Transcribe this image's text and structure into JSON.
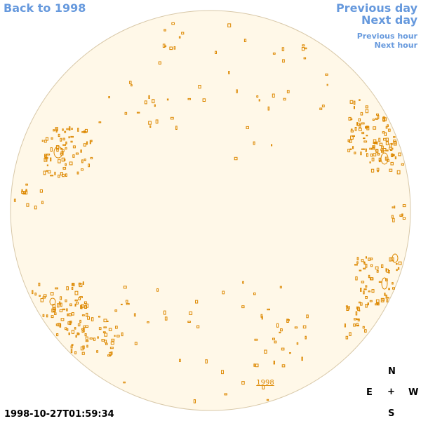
{
  "nav": {
    "back": "Back to 1998",
    "previous_day": "Previous day",
    "next_day": "Next day",
    "previous_hour": "Previous hour",
    "next_hour": "Next hour"
  },
  "disk_label": "1998",
  "timestamp": "1998-10-27T01:59:34",
  "compass": {
    "north": "N",
    "south": "S",
    "east": "E",
    "west": "W",
    "center": "+"
  },
  "colors": {
    "disk_fill": "#fff8e8",
    "disk_edge": "#d8c8a8",
    "contour": "#dd8800",
    "link": "#6699dd"
  }
}
